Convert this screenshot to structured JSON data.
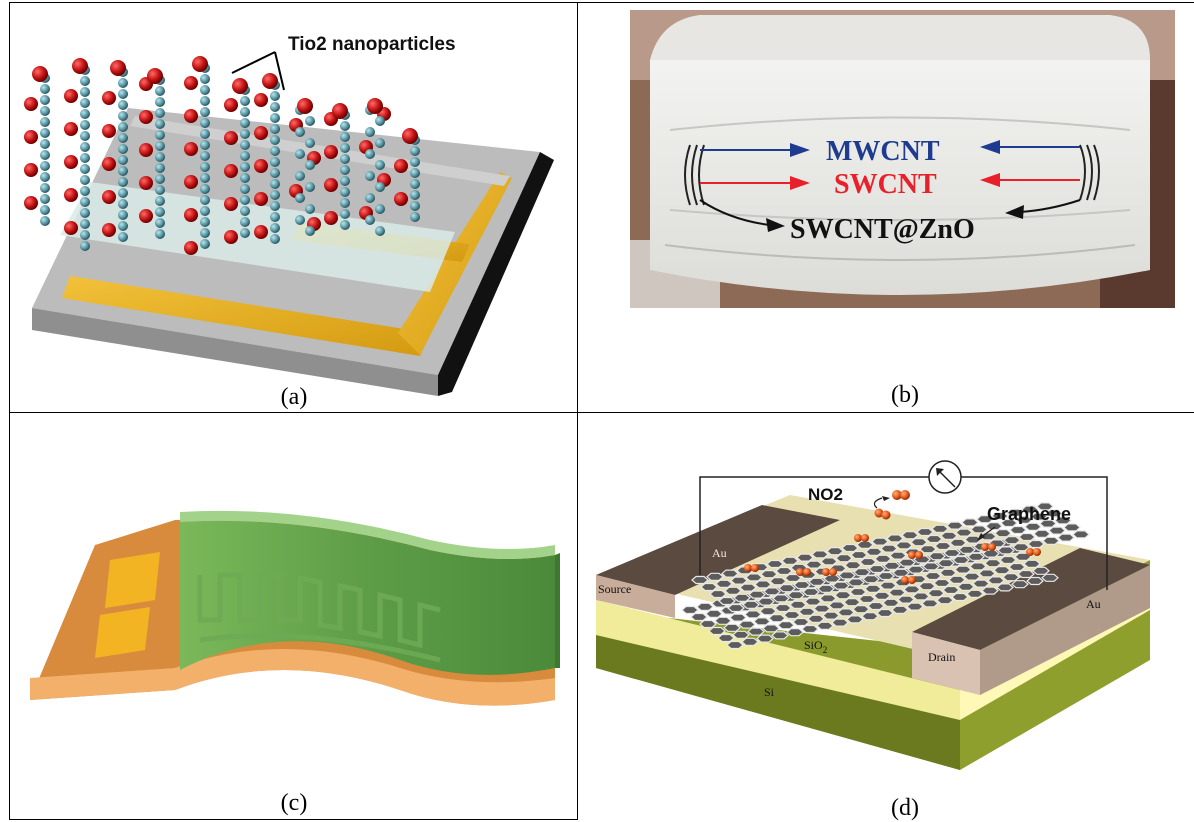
{
  "panel_a": {
    "caption": "(a)",
    "label": "Tio2 nanoparticles"
  },
  "panel_b": {
    "caption": "(b)",
    "labels": {
      "mwcnt": "MWCNT",
      "swcnt": "SWCNT",
      "swcnt_zno": "SWCNT@ZnO"
    },
    "colors": {
      "mwcnt": "#1f3b8f",
      "swcnt": "#e8202a",
      "swcnt_zno": "#111111"
    }
  },
  "panel_c": {
    "caption": "(c)"
  },
  "panel_d": {
    "caption": "(d)",
    "labels": {
      "no2": "NO2",
      "graphene": "Graphene",
      "au_top": "Au",
      "au_right": "Au",
      "source": "Source",
      "drain": "Drain",
      "sio2": "SiO",
      "sio2_sub": "2",
      "si": "Si"
    }
  }
}
